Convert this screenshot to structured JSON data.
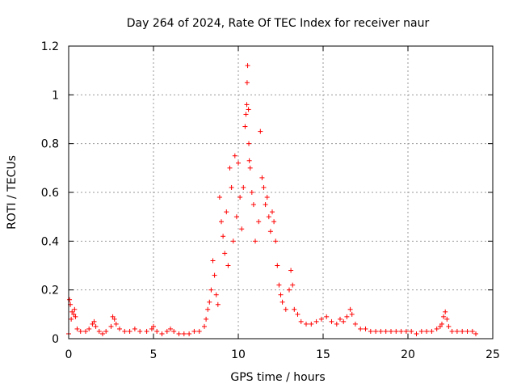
{
  "chart_data": {
    "type": "scatter",
    "title": "Day 264 of 2024, Rate Of TEC Index for receiver naur",
    "xlabel": "GPS time / hours",
    "ylabel": "ROTI / TECUs",
    "xlim": [
      0,
      25
    ],
    "ylim": [
      0,
      1.2
    ],
    "xticks": [
      "0",
      "5",
      "10",
      "15",
      "20",
      "25"
    ],
    "yticks": [
      "0",
      "0.2",
      "0.4",
      "0.6",
      "0.8",
      "1",
      "1.2"
    ],
    "grid": true,
    "marker": "+",
    "color": "#ff0000",
    "series": [
      {
        "points": [
          [
            0.0,
            0.02
          ],
          [
            0.05,
            0.16
          ],
          [
            0.1,
            0.14
          ],
          [
            0.15,
            0.08
          ],
          [
            0.2,
            0.11
          ],
          [
            0.3,
            0.1
          ],
          [
            0.35,
            0.12
          ],
          [
            0.4,
            0.09
          ],
          [
            0.5,
            0.04
          ],
          [
            0.7,
            0.03
          ],
          [
            1.0,
            0.03
          ],
          [
            1.2,
            0.04
          ],
          [
            1.4,
            0.06
          ],
          [
            1.5,
            0.07
          ],
          [
            1.6,
            0.05
          ],
          [
            1.8,
            0.03
          ],
          [
            2.0,
            0.02
          ],
          [
            2.2,
            0.03
          ],
          [
            2.5,
            0.05
          ],
          [
            2.6,
            0.09
          ],
          [
            2.7,
            0.08
          ],
          [
            2.8,
            0.06
          ],
          [
            3.0,
            0.04
          ],
          [
            3.3,
            0.03
          ],
          [
            3.6,
            0.03
          ],
          [
            3.9,
            0.04
          ],
          [
            4.2,
            0.03
          ],
          [
            4.6,
            0.03
          ],
          [
            4.9,
            0.04
          ],
          [
            5.0,
            0.05
          ],
          [
            5.2,
            0.03
          ],
          [
            5.5,
            0.02
          ],
          [
            5.8,
            0.03
          ],
          [
            6.0,
            0.04
          ],
          [
            6.2,
            0.03
          ],
          [
            6.5,
            0.02
          ],
          [
            6.8,
            0.02
          ],
          [
            7.1,
            0.02
          ],
          [
            7.4,
            0.03
          ],
          [
            7.7,
            0.03
          ],
          [
            8.0,
            0.05
          ],
          [
            8.1,
            0.08
          ],
          [
            8.2,
            0.12
          ],
          [
            8.3,
            0.15
          ],
          [
            8.4,
            0.2
          ],
          [
            8.5,
            0.32
          ],
          [
            8.6,
            0.26
          ],
          [
            8.7,
            0.18
          ],
          [
            8.8,
            0.14
          ],
          [
            8.9,
            0.58
          ],
          [
            9.0,
            0.48
          ],
          [
            9.1,
            0.42
          ],
          [
            9.2,
            0.35
          ],
          [
            9.3,
            0.52
          ],
          [
            9.4,
            0.3
          ],
          [
            9.5,
            0.7
          ],
          [
            9.6,
            0.62
          ],
          [
            9.7,
            0.4
          ],
          [
            9.8,
            0.75
          ],
          [
            9.9,
            0.5
          ],
          [
            10.0,
            0.72
          ],
          [
            10.1,
            0.58
          ],
          [
            10.2,
            0.45
          ],
          [
            10.3,
            0.62
          ],
          [
            10.4,
            0.87
          ],
          [
            10.45,
            0.92
          ],
          [
            10.5,
            0.96
          ],
          [
            10.52,
            1.05
          ],
          [
            10.55,
            1.12
          ],
          [
            10.6,
            0.94
          ],
          [
            10.62,
            0.8
          ],
          [
            10.65,
            0.73
          ],
          [
            10.7,
            0.7
          ],
          [
            10.8,
            0.6
          ],
          [
            10.9,
            0.55
          ],
          [
            11.0,
            0.4
          ],
          [
            11.2,
            0.48
          ],
          [
            11.3,
            0.85
          ],
          [
            11.4,
            0.66
          ],
          [
            11.5,
            0.62
          ],
          [
            11.6,
            0.55
          ],
          [
            11.7,
            0.58
          ],
          [
            11.8,
            0.5
          ],
          [
            11.9,
            0.44
          ],
          [
            12.0,
            0.52
          ],
          [
            12.1,
            0.48
          ],
          [
            12.2,
            0.4
          ],
          [
            12.3,
            0.3
          ],
          [
            12.4,
            0.22
          ],
          [
            12.5,
            0.18
          ],
          [
            12.6,
            0.15
          ],
          [
            12.8,
            0.12
          ],
          [
            13.0,
            0.2
          ],
          [
            13.1,
            0.28
          ],
          [
            13.2,
            0.22
          ],
          [
            13.3,
            0.12
          ],
          [
            13.5,
            0.1
          ],
          [
            13.7,
            0.07
          ],
          [
            14.0,
            0.06
          ],
          [
            14.3,
            0.06
          ],
          [
            14.6,
            0.07
          ],
          [
            14.9,
            0.08
          ],
          [
            15.2,
            0.09
          ],
          [
            15.5,
            0.07
          ],
          [
            15.8,
            0.06
          ],
          [
            16.0,
            0.08
          ],
          [
            16.2,
            0.07
          ],
          [
            16.4,
            0.09
          ],
          [
            16.6,
            0.12
          ],
          [
            16.7,
            0.1
          ],
          [
            16.9,
            0.06
          ],
          [
            17.2,
            0.04
          ],
          [
            17.5,
            0.04
          ],
          [
            17.8,
            0.03
          ],
          [
            18.1,
            0.03
          ],
          [
            18.4,
            0.03
          ],
          [
            18.7,
            0.03
          ],
          [
            19.0,
            0.03
          ],
          [
            19.3,
            0.03
          ],
          [
            19.6,
            0.03
          ],
          [
            19.9,
            0.03
          ],
          [
            20.2,
            0.03
          ],
          [
            20.5,
            0.02
          ],
          [
            20.8,
            0.03
          ],
          [
            21.1,
            0.03
          ],
          [
            21.4,
            0.03
          ],
          [
            21.7,
            0.04
          ],
          [
            21.9,
            0.05
          ],
          [
            22.0,
            0.06
          ],
          [
            22.1,
            0.09
          ],
          [
            22.2,
            0.11
          ],
          [
            22.3,
            0.08
          ],
          [
            22.4,
            0.05
          ],
          [
            22.6,
            0.03
          ],
          [
            22.9,
            0.03
          ],
          [
            23.2,
            0.03
          ],
          [
            23.5,
            0.03
          ],
          [
            23.8,
            0.03
          ],
          [
            24.0,
            0.02
          ]
        ]
      }
    ]
  }
}
